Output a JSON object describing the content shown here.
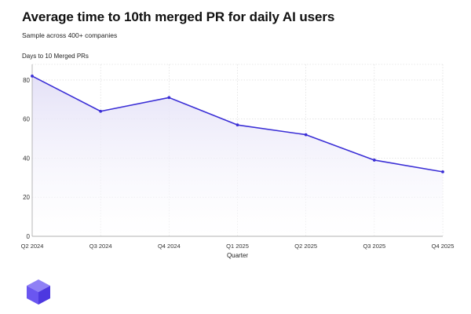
{
  "header": {
    "title": "Average time to 10th merged PR for daily AI users",
    "subtitle": "Sample across 400+ companies"
  },
  "colors": {
    "line": "#3b2fd6",
    "fill_top": "#e4e1f7",
    "grid": "#d6d6d6",
    "logo": "#6a56f0"
  },
  "logo": {
    "icon": "cube-icon"
  },
  "chart_data": {
    "type": "area",
    "title": "Average time to 10th merged PR for daily AI users",
    "subtitle": "Sample across 400+ companies",
    "xlabel": "Quarter",
    "ylabel": "Days to 10 Merged PRs",
    "categories": [
      "Q2 2024",
      "Q3 2024",
      "Q4 2024",
      "Q1 2025",
      "Q2 2025",
      "Q3 2025",
      "Q4 2025"
    ],
    "series": [
      {
        "name": "Days to 10 Merged PRs",
        "values": [
          82,
          64,
          71,
          57,
          52,
          39,
          33
        ]
      }
    ],
    "ylim": [
      0,
      88
    ],
    "yticks": [
      0,
      20,
      40,
      60,
      80
    ],
    "grid": true
  }
}
